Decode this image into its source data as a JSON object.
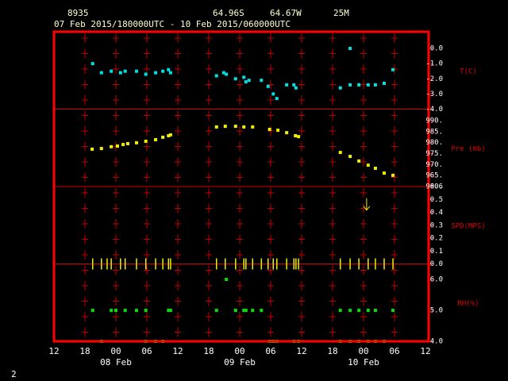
{
  "header": {
    "station": "8935",
    "latitude": "64.96S",
    "longitude": "64.67W",
    "elevation": "25M",
    "period": "07 Feb 2015/180000UTC - 10 Feb 2015/060000UTC",
    "page_number": 2
  },
  "x_axis": {
    "xlim": [
      0,
      72
    ],
    "xticks": [
      {
        "value": 0,
        "label": "12"
      },
      {
        "value": 6,
        "label": "18"
      },
      {
        "value": 12,
        "label": "00"
      },
      {
        "value": 18,
        "label": "06"
      },
      {
        "value": 24,
        "label": "12"
      },
      {
        "value": 30,
        "label": "18"
      },
      {
        "value": 36,
        "label": "00"
      },
      {
        "value": 42,
        "label": "06"
      },
      {
        "value": 48,
        "label": "12"
      },
      {
        "value": 54,
        "label": "18"
      },
      {
        "value": 60,
        "label": "00"
      },
      {
        "value": 66,
        "label": "06"
      },
      {
        "value": 72,
        "label": "12"
      }
    ],
    "date_labels": [
      {
        "value": 12,
        "label": "08 Feb"
      },
      {
        "value": 36,
        "label": "09 Feb"
      },
      {
        "value": 60,
        "label": "10 Feb"
      }
    ]
  },
  "chart_data": [
    {
      "type": "scatter",
      "label": "T(C)",
      "ylim": [
        -4,
        1.1
      ],
      "yticks": [
        {
          "value": 0,
          "label": "0.0"
        },
        {
          "value": -1,
          "label": "-1.0"
        },
        {
          "value": -2,
          "label": "-2.0"
        },
        {
          "value": -3,
          "label": "-3.0"
        },
        {
          "value": -4,
          "label": "-4.0"
        }
      ],
      "series": [
        {
          "color": "#00e0e0",
          "marker": "square",
          "x": [
            7.5,
            9.2,
            11.1,
            12.9,
            13.8,
            16,
            17.8,
            19.7,
            21.1,
            22.2,
            22.6,
            31.5,
            32.9,
            33.4,
            35.2,
            36.8,
            37.2,
            37.8,
            40.2,
            41.5,
            42.5,
            43.2,
            45.1,
            46.5,
            46.9,
            55.5,
            57.4,
            57.4,
            59.1,
            60.9,
            62.3,
            64,
            65.7
          ],
          "values": [
            -1.0,
            -1.6,
            -1.5,
            -1.6,
            -1.5,
            -1.5,
            -1.7,
            -1.6,
            -1.5,
            -1.4,
            -1.6,
            -1.8,
            -1.6,
            -1.7,
            -2.0,
            -1.9,
            -2.2,
            -2.1,
            -2.1,
            -2.5,
            -3.0,
            -3.3,
            -2.4,
            -2.4,
            -2.6,
            -2.6,
            0.0,
            -2.4,
            -2.4,
            -2.4,
            -2.4,
            -2.3,
            -1.4
          ]
        }
      ]
    },
    {
      "type": "scatter",
      "label": "Pre (mb)",
      "ylim": [
        960,
        995.2
      ],
      "yticks": [
        {
          "value": 990,
          "label": "990."
        },
        {
          "value": 985,
          "label": "985."
        },
        {
          "value": 980,
          "label": "980."
        },
        {
          "value": 975,
          "label": "975."
        },
        {
          "value": 970,
          "label": "970."
        },
        {
          "value": 965,
          "label": "965."
        },
        {
          "value": 960,
          "label": "960."
        }
      ],
      "series": [
        {
          "color": "#f0f000",
          "marker": "square",
          "x": [
            7.4,
            9.2,
            11.1,
            12.3,
            13.4,
            14.3,
            16,
            17.8,
            19.7,
            21.1,
            22.2,
            22.6,
            31.5,
            33.2,
            35.2,
            36.8,
            38.5,
            41.8,
            43.4,
            45.1,
            46.8,
            47.4,
            55.5,
            57.4,
            59.1,
            60.9,
            62.3,
            64,
            65.7
          ],
          "values": [
            977.0,
            977.3,
            978.1,
            978.4,
            979.1,
            979.5,
            979.9,
            980.6,
            981.3,
            982.4,
            983.1,
            983.5,
            987.1,
            987.4,
            987.4,
            987.1,
            987.1,
            986.0,
            985.6,
            984.5,
            983.1,
            982.7,
            975.5,
            973.7,
            971.6,
            969.7,
            968.3,
            966.1,
            965.1
          ]
        }
      ]
    },
    {
      "type": "wind",
      "label": "SPD(MPS)",
      "ylim": [
        0,
        0.6
      ],
      "yticks": [
        0.6,
        0.5,
        0.4,
        0.3,
        0.2,
        0.1,
        {
          "value": 0,
          "label": "0.0"
        }
      ],
      "series": [
        {
          "color": "#f0f000",
          "marker": "tick",
          "x": [
            7.5,
            9.2,
            10.3,
            11.1,
            12.9,
            13.8,
            16,
            17.8,
            19.7,
            21.1,
            22.2,
            22.6,
            31.5,
            33.2,
            35.2,
            36.8,
            37.2,
            38.5,
            40.2,
            41.5,
            42.5,
            43.2,
            45.1,
            46.5,
            46.9,
            47.4,
            55.5,
            57.4,
            59.1,
            60.9,
            62.3,
            64,
            65.7
          ],
          "values": [
            0,
            0,
            0,
            0,
            0,
            0,
            0,
            0,
            0,
            0,
            0,
            0,
            0,
            0,
            0,
            0,
            0,
            0,
            0,
            0,
            0,
            0,
            0,
            0,
            0,
            0,
            0,
            0,
            0,
            0,
            0,
            0,
            0
          ]
        },
        {
          "color": "#f0f000",
          "marker": "arrow",
          "x": [
            60.6
          ],
          "values": [
            0.46
          ]
        }
      ]
    },
    {
      "type": "scatter",
      "label": "RH(%)",
      "ylim": [
        4,
        6.5
      ],
      "yticks": [
        {
          "value": 6,
          "label": "6.0"
        },
        {
          "value": 5,
          "label": "5.0"
        },
        {
          "value": 4,
          "label": "4.0"
        }
      ],
      "series": [
        {
          "color": "#00e000",
          "marker": "square",
          "x": [
            7.5,
            11.1,
            12.0,
            13.8,
            16,
            17.8,
            22.2,
            22.6,
            31.5,
            33.4,
            35.2,
            36.8,
            37.2,
            38.5,
            40.2,
            55.5,
            57.4,
            59.1,
            60.9,
            62.3,
            65.7,
            9.2,
            17.8,
            19.7,
            21.1,
            41.8,
            42.5,
            43.2,
            46.5,
            47.4,
            55.5,
            57.4,
            59.1,
            60.9,
            62.3,
            64
          ],
          "values": [
            5,
            5,
            5,
            5,
            5,
            5,
            5,
            5,
            5,
            6,
            5,
            5,
            5,
            5,
            5,
            5,
            5,
            5,
            5,
            5,
            5,
            4,
            4,
            4,
            4,
            4,
            4,
            4,
            4,
            4,
            4,
            4,
            4,
            4,
            4,
            4
          ]
        }
      ]
    }
  ]
}
